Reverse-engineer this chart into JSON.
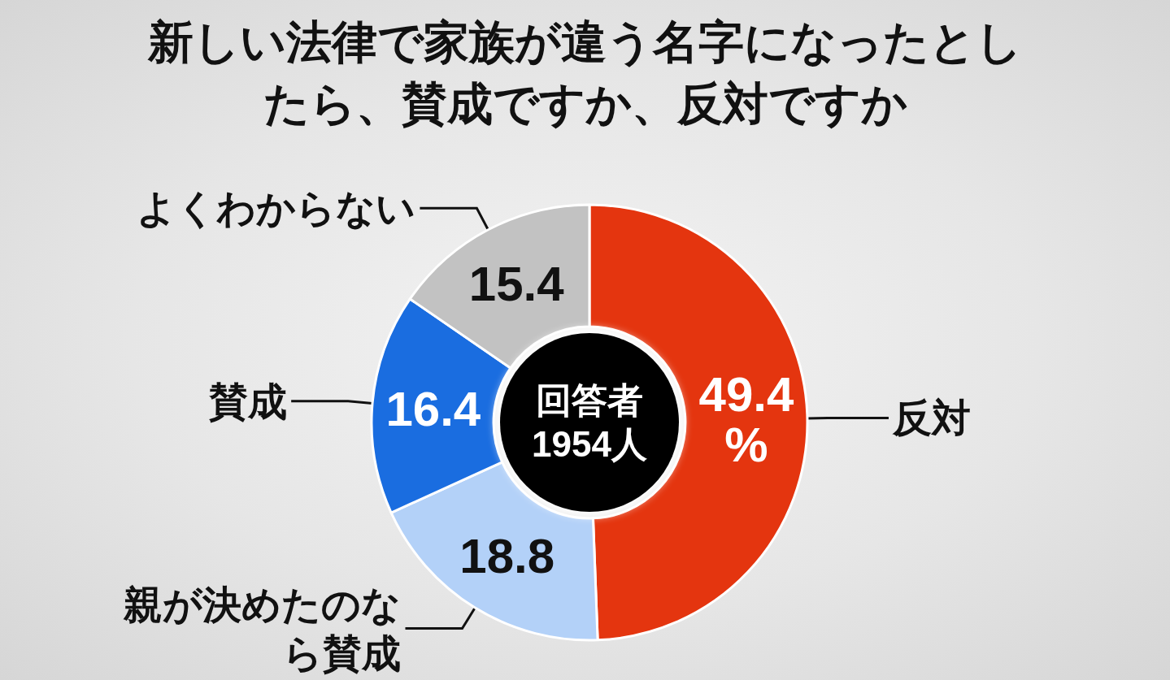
{
  "chart_data": {
    "type": "donut",
    "title": "新しい法律で家族が違う名字になったとしたら、賛成ですか、反対ですか",
    "categories": [
      "反対",
      "親が決めたのなら賛成",
      "賛成",
      "よくわからない"
    ],
    "values": [
      49.4,
      18.8,
      16.4,
      15.4
    ],
    "colors": [
      "#e4350f",
      "#b3d1f8",
      "#1a6de0",
      "#c2c2c2"
    ],
    "value_labels": [
      "49.4\n%",
      "18.8",
      "16.4",
      "15.4"
    ],
    "annotations": [
      "回答者1954人"
    ]
  }
}
